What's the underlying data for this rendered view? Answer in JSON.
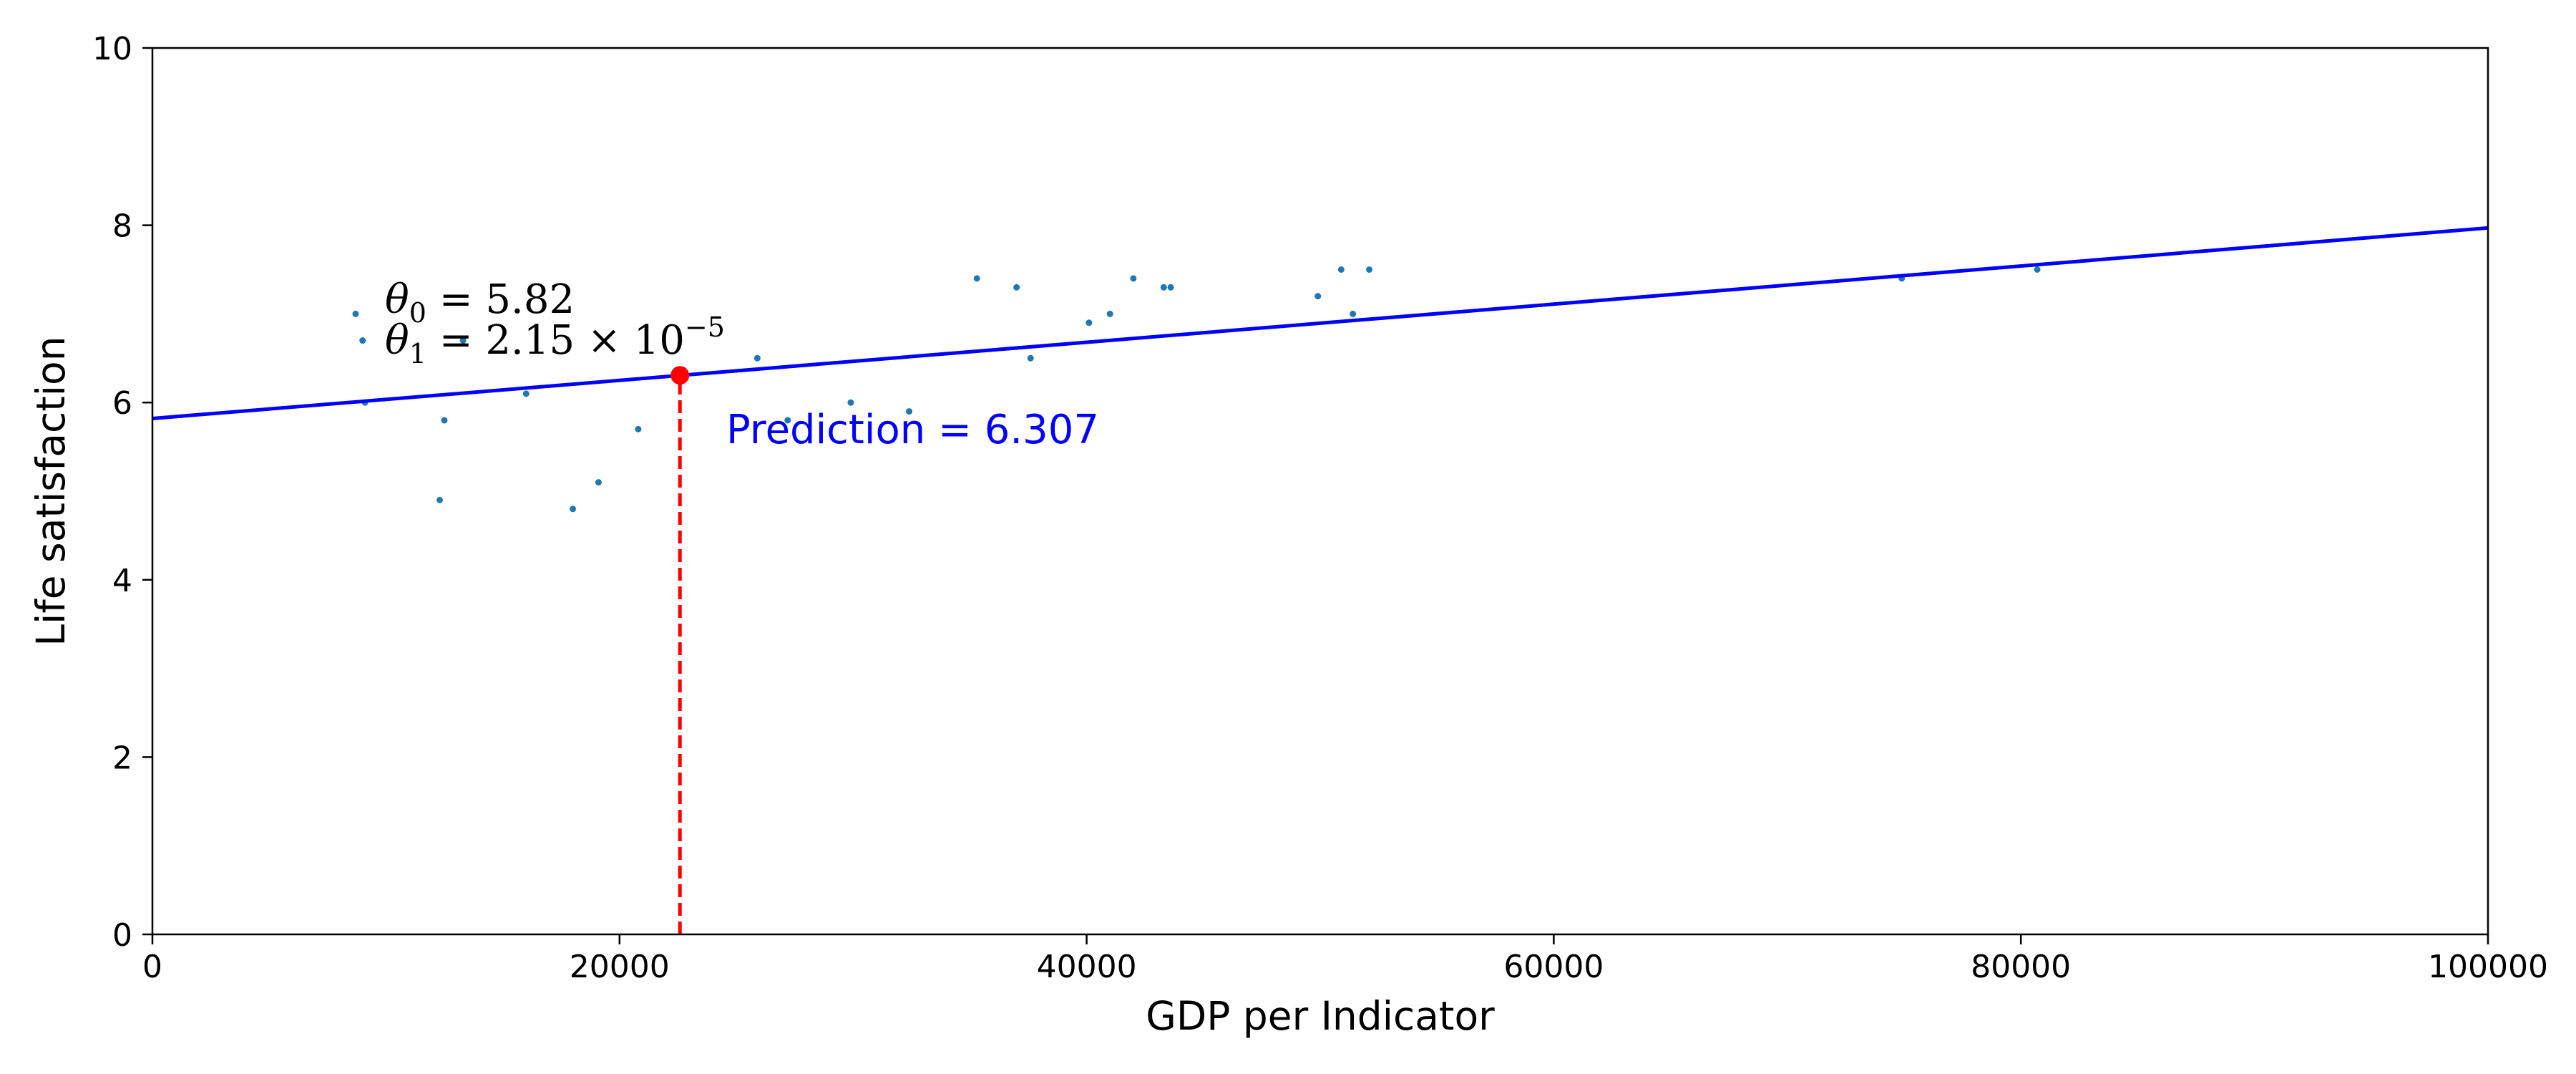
{
  "chart_data": {
    "type": "scatter",
    "xlabel": "GDP per Indicator",
    "ylabel": "Life satisfaction",
    "xlim": [
      0,
      100000
    ],
    "ylim": [
      0,
      10
    ],
    "x_ticks": [
      0,
      20000,
      40000,
      60000,
      80000,
      100000
    ],
    "y_ticks": [
      0,
      2,
      4,
      6,
      8,
      10
    ],
    "x_tick_labels": [
      "0",
      "20000",
      "40000",
      "60000",
      "80000",
      "100000"
    ],
    "y_tick_labels": [
      "0",
      "2",
      "4",
      "6",
      "8",
      "10"
    ],
    "grid": false,
    "points": {
      "color": "#1f77b4",
      "x": [
        8700,
        9000,
        9100,
        12300,
        12500,
        13300,
        16000,
        18000,
        19100,
        20800,
        25900,
        27200,
        29900,
        32400,
        35300,
        37000,
        37600,
        40100,
        41000,
        42000,
        43300,
        43600,
        49900,
        50900,
        51400,
        52100,
        74900,
        80700
      ],
      "y": [
        7.0,
        6.7,
        6.0,
        4.9,
        5.8,
        6.7,
        6.1,
        4.8,
        5.1,
        5.7,
        6.5,
        5.8,
        6.0,
        5.9,
        7.4,
        7.3,
        6.5,
        6.9,
        7.0,
        7.4,
        7.3,
        7.3,
        7.2,
        7.5,
        7.0,
        7.5,
        7.4,
        7.5
      ]
    },
    "fit_line": {
      "color": "#0000ff",
      "theta0": 5.82,
      "theta1": 2.15e-05,
      "x": [
        0,
        100000
      ]
    },
    "prediction": {
      "x": 22587,
      "y": 6.307,
      "marker_color": "#ff0000",
      "dashed_line_color": "#ff0000"
    },
    "annotations": {
      "theta0_symbol": "θ",
      "theta0_sub": "0",
      "theta0_rest": " = 5.82",
      "theta1_symbol": "θ",
      "theta1_sub": "1",
      "theta1_rest": " = 2.15 × 10",
      "theta1_exp": "−5",
      "prediction_text": "Prediction = 6.307",
      "prediction_color": "#0000ff"
    }
  }
}
